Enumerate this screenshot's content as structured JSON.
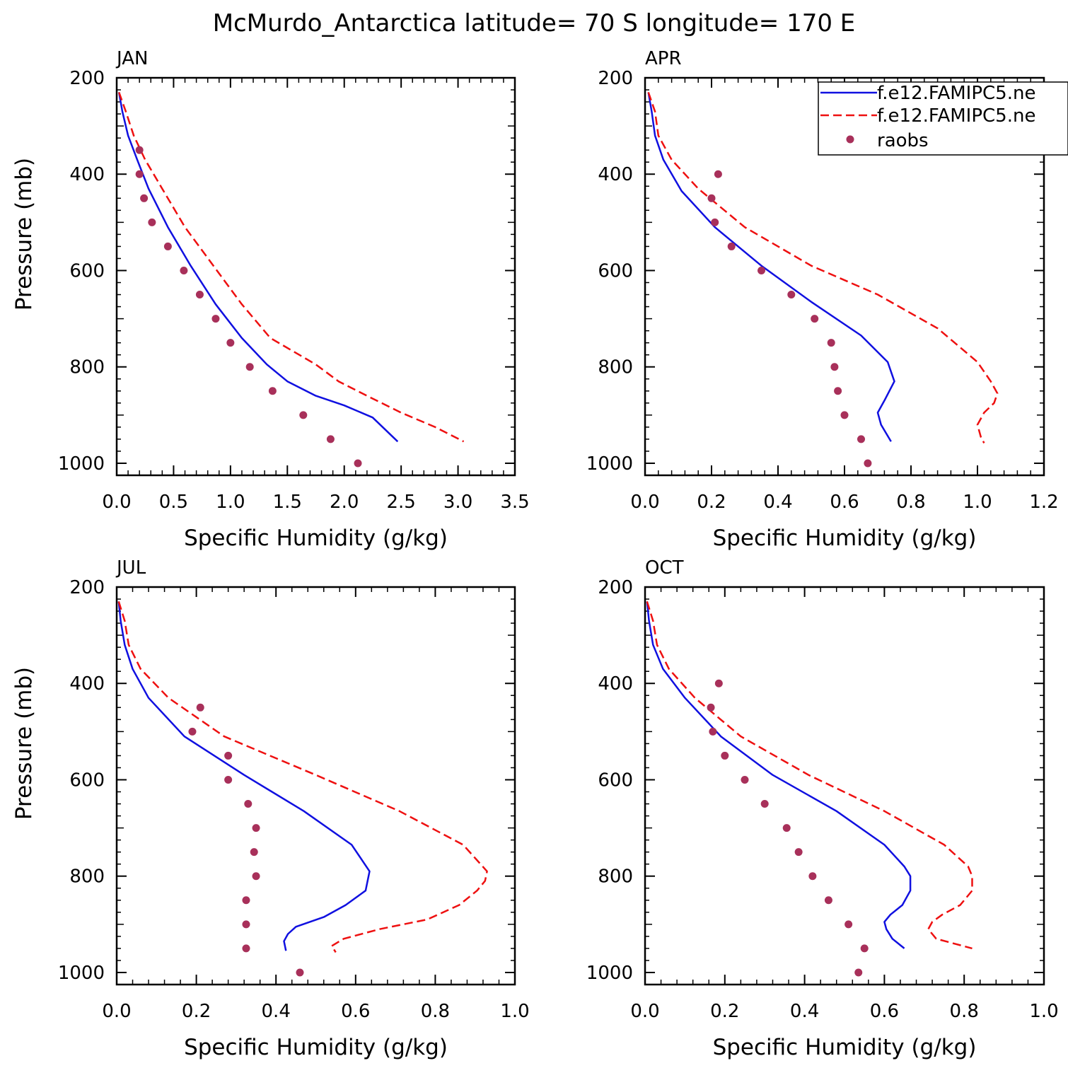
{
  "title": "McMurdo_Antarctica  latitude= 70 S longitude= 170 E",
  "colors": {
    "model1": "#1010e0",
    "model2": "#ee1010",
    "obs": "#a8305a",
    "axis": "#000000"
  },
  "legend": {
    "placement": "top-right of APR panel",
    "entries": [
      {
        "label": "f.e12.FAMIPC5.ne",
        "style": "solid",
        "color": "#1010e0"
      },
      {
        "label": "f.e12.FAMIPC5.ne",
        "style": "dashed",
        "color": "#ee1010"
      },
      {
        "label": "raobs",
        "style": "dot",
        "color": "#a8305a"
      }
    ]
  },
  "chart_data": [
    {
      "type": "line",
      "panel": "JAN",
      "xlabel": "Specific Humidity (g/kg)",
      "ylabel": "Pressure (mb)",
      "xlim": [
        0,
        3.5
      ],
      "ylim": [
        1025,
        200
      ],
      "xticks": [
        "0.0",
        "0.5",
        "1.0",
        "1.5",
        "2.0",
        "2.5",
        "3.0",
        "3.5"
      ],
      "yticks": [
        "200",
        "400",
        "600",
        "800",
        "1000"
      ],
      "series": [
        {
          "style": "solid",
          "points": [
            [
              0.02,
              230
            ],
            [
              0.05,
              270
            ],
            [
              0.1,
              320
            ],
            [
              0.18,
              370
            ],
            [
              0.28,
              430
            ],
            [
              0.45,
              510
            ],
            [
              0.65,
              590
            ],
            [
              0.87,
              670
            ],
            [
              1.1,
              740
            ],
            [
              1.32,
              795
            ],
            [
              1.5,
              830
            ],
            [
              1.75,
              860
            ],
            [
              2.0,
              880
            ],
            [
              2.25,
              905
            ],
            [
              2.47,
              955
            ]
          ]
        },
        {
          "style": "dashed",
          "points": [
            [
              0.02,
              230
            ],
            [
              0.08,
              270
            ],
            [
              0.15,
              320
            ],
            [
              0.25,
              370
            ],
            [
              0.4,
              430
            ],
            [
              0.6,
              510
            ],
            [
              0.85,
              590
            ],
            [
              1.1,
              670
            ],
            [
              1.35,
              740
            ],
            [
              1.75,
              795
            ],
            [
              1.95,
              830
            ],
            [
              2.2,
              860
            ],
            [
              2.5,
              895
            ],
            [
              2.8,
              925
            ],
            [
              3.05,
              955
            ]
          ]
        },
        {
          "style": "dot",
          "points": [
            [
              0.2,
              350
            ],
            [
              0.2,
              400
            ],
            [
              0.24,
              450
            ],
            [
              0.31,
              500
            ],
            [
              0.45,
              550
            ],
            [
              0.59,
              600
            ],
            [
              0.73,
              650
            ],
            [
              0.87,
              700
            ],
            [
              1.0,
              750
            ],
            [
              1.17,
              800
            ],
            [
              1.37,
              850
            ],
            [
              1.64,
              900
            ],
            [
              1.88,
              950
            ],
            [
              2.12,
              1000
            ]
          ]
        }
      ]
    },
    {
      "type": "line",
      "panel": "APR",
      "xlabel": "Specific Humidity (g/kg)",
      "ylabel": "",
      "xlim": [
        0,
        1.2
      ],
      "ylim": [
        1025,
        200
      ],
      "xticks": [
        "0.0",
        "0.2",
        "0.4",
        "0.6",
        "0.8",
        "1.0",
        "1.2"
      ],
      "yticks": [
        "200",
        "400",
        "600",
        "800",
        "1000"
      ],
      "series": [
        {
          "style": "solid",
          "points": [
            [
              0.01,
              230
            ],
            [
              0.02,
              270
            ],
            [
              0.03,
              320
            ],
            [
              0.055,
              370
            ],
            [
              0.11,
              435
            ],
            [
              0.21,
              510
            ],
            [
              0.35,
              590
            ],
            [
              0.5,
              665
            ],
            [
              0.65,
              735
            ],
            [
              0.73,
              790
            ],
            [
              0.75,
              830
            ],
            [
              0.72,
              870
            ],
            [
              0.7,
              895
            ],
            [
              0.71,
              920
            ],
            [
              0.74,
              955
            ]
          ]
        },
        {
          "style": "dashed",
          "points": [
            [
              0.01,
              230
            ],
            [
              0.03,
              270
            ],
            [
              0.04,
              320
            ],
            [
              0.08,
              370
            ],
            [
              0.16,
              430
            ],
            [
              0.3,
              510
            ],
            [
              0.5,
              590
            ],
            [
              0.7,
              650
            ],
            [
              0.88,
              720
            ],
            [
              1.0,
              790
            ],
            [
              1.04,
              830
            ],
            [
              1.06,
              855
            ],
            [
              1.05,
              875
            ],
            [
              1.02,
              895
            ],
            [
              1.0,
              920
            ],
            [
              1.01,
              945
            ],
            [
              1.02,
              958
            ]
          ]
        },
        {
          "style": "dot",
          "points": [
            [
              0.22,
              400
            ],
            [
              0.2,
              450
            ],
            [
              0.21,
              500
            ],
            [
              0.26,
              550
            ],
            [
              0.35,
              600
            ],
            [
              0.44,
              650
            ],
            [
              0.51,
              700
            ],
            [
              0.56,
              750
            ],
            [
              0.57,
              800
            ],
            [
              0.58,
              850
            ],
            [
              0.6,
              900
            ],
            [
              0.65,
              950
            ],
            [
              0.67,
              1000
            ]
          ]
        }
      ]
    },
    {
      "type": "line",
      "panel": "JUL",
      "xlabel": "Specific Humidity (g/kg)",
      "ylabel": "Pressure (mb)",
      "xlim": [
        0,
        1.0
      ],
      "ylim": [
        1025,
        200
      ],
      "xticks": [
        "0.0",
        "0.2",
        "0.4",
        "0.6",
        "0.8",
        "1.0"
      ],
      "yticks": [
        "200",
        "400",
        "600",
        "800",
        "1000"
      ],
      "series": [
        {
          "style": "solid",
          "points": [
            [
              0.005,
              230
            ],
            [
              0.01,
              270
            ],
            [
              0.02,
              320
            ],
            [
              0.04,
              370
            ],
            [
              0.08,
              430
            ],
            [
              0.17,
              510
            ],
            [
              0.32,
              590
            ],
            [
              0.47,
              665
            ],
            [
              0.59,
              735
            ],
            [
              0.635,
              790
            ],
            [
              0.625,
              830
            ],
            [
              0.575,
              860
            ],
            [
              0.52,
              885
            ],
            [
              0.45,
              905
            ],
            [
              0.43,
              920
            ],
            [
              0.42,
              935
            ],
            [
              0.425,
              955
            ]
          ]
        },
        {
          "style": "dashed",
          "points": [
            [
              0.005,
              230
            ],
            [
              0.02,
              270
            ],
            [
              0.03,
              320
            ],
            [
              0.06,
              370
            ],
            [
              0.13,
              430
            ],
            [
              0.27,
              510
            ],
            [
              0.5,
              590
            ],
            [
              0.71,
              665
            ],
            [
              0.87,
              735
            ],
            [
              0.93,
              790
            ],
            [
              0.925,
              810
            ],
            [
              0.905,
              830
            ],
            [
              0.86,
              860
            ],
            [
              0.78,
              890
            ],
            [
              0.66,
              910
            ],
            [
              0.57,
              930
            ],
            [
              0.54,
              945
            ],
            [
              0.55,
              958
            ]
          ]
        },
        {
          "style": "dot",
          "points": [
            [
              0.21,
              450
            ],
            [
              0.19,
              500
            ],
            [
              0.28,
              550
            ],
            [
              0.28,
              600
            ],
            [
              0.33,
              650
            ],
            [
              0.35,
              700
            ],
            [
              0.345,
              750
            ],
            [
              0.35,
              800
            ],
            [
              0.325,
              850
            ],
            [
              0.325,
              900
            ],
            [
              0.325,
              950
            ],
            [
              0.46,
              1000
            ]
          ]
        }
      ]
    },
    {
      "type": "line",
      "panel": "OCT",
      "xlabel": "Specific Humidity (g/kg)",
      "ylabel": "",
      "xlim": [
        0,
        1.0
      ],
      "ylim": [
        1025,
        200
      ],
      "xticks": [
        "0.0",
        "0.2",
        "0.4",
        "0.6",
        "0.8",
        "1.0"
      ],
      "yticks": [
        "200",
        "400",
        "600",
        "800",
        "1000"
      ],
      "series": [
        {
          "style": "solid",
          "points": [
            [
              0.005,
              230
            ],
            [
              0.01,
              270
            ],
            [
              0.02,
              320
            ],
            [
              0.045,
              370
            ],
            [
              0.1,
              430
            ],
            [
              0.19,
              510
            ],
            [
              0.32,
              590
            ],
            [
              0.48,
              665
            ],
            [
              0.6,
              735
            ],
            [
              0.65,
              780
            ],
            [
              0.665,
              800
            ],
            [
              0.665,
              830
            ],
            [
              0.645,
              860
            ],
            [
              0.615,
              880
            ],
            [
              0.6,
              895
            ],
            [
              0.605,
              910
            ],
            [
              0.62,
              930
            ],
            [
              0.65,
              950
            ]
          ]
        },
        {
          "style": "dashed",
          "points": [
            [
              0.005,
              230
            ],
            [
              0.02,
              270
            ],
            [
              0.03,
              320
            ],
            [
              0.06,
              370
            ],
            [
              0.125,
              430
            ],
            [
              0.24,
              510
            ],
            [
              0.41,
              590
            ],
            [
              0.6,
              665
            ],
            [
              0.75,
              735
            ],
            [
              0.81,
              780
            ],
            [
              0.82,
              800
            ],
            [
              0.82,
              830
            ],
            [
              0.79,
              860
            ],
            [
              0.745,
              880
            ],
            [
              0.72,
              895
            ],
            [
              0.71,
              910
            ],
            [
              0.73,
              930
            ],
            [
              0.82,
              950
            ]
          ]
        },
        {
          "style": "dot",
          "points": [
            [
              0.185,
              400
            ],
            [
              0.165,
              450
            ],
            [
              0.17,
              500
            ],
            [
              0.2,
              550
            ],
            [
              0.25,
              600
            ],
            [
              0.3,
              650
            ],
            [
              0.355,
              700
            ],
            [
              0.385,
              750
            ],
            [
              0.42,
              800
            ],
            [
              0.46,
              850
            ],
            [
              0.51,
              900
            ],
            [
              0.55,
              950
            ],
            [
              0.535,
              1000
            ]
          ]
        }
      ]
    }
  ]
}
